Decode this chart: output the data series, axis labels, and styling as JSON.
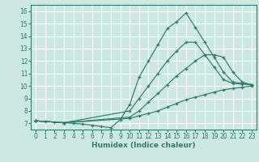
{
  "title": "",
  "xlabel": "Humidex (Indice chaleur)",
  "xlim": [
    -0.5,
    23.5
  ],
  "ylim": [
    6.5,
    16.5
  ],
  "xticks": [
    0,
    1,
    2,
    3,
    4,
    5,
    6,
    7,
    8,
    9,
    10,
    11,
    12,
    13,
    14,
    15,
    16,
    17,
    18,
    19,
    20,
    21,
    22,
    23
  ],
  "yticks": [
    7,
    8,
    9,
    10,
    11,
    12,
    13,
    14,
    15,
    16
  ],
  "background_color": "#cce8e0",
  "line_color": "#2e7d6e",
  "grid_color": "#ffffff",
  "lines": [
    {
      "x": [
        0,
        1,
        2,
        3,
        4,
        5,
        6,
        7,
        8,
        9,
        10,
        11,
        12,
        13,
        14,
        15,
        16,
        17,
        18,
        19,
        20,
        21,
        22,
        23
      ],
      "y": [
        7.2,
        7.15,
        7.1,
        7.05,
        7.0,
        6.95,
        6.85,
        6.75,
        6.65,
        7.3,
        8.5,
        10.7,
        12.0,
        13.3,
        14.6,
        15.15,
        15.85,
        14.7,
        13.5,
        12.3,
        11.1,
        10.3,
        10.2,
        10.1
      ]
    },
    {
      "x": [
        0,
        3,
        10,
        11,
        12,
        13,
        14,
        15,
        16,
        17,
        18,
        19,
        20,
        21,
        22,
        23
      ],
      "y": [
        7.2,
        7.05,
        8.0,
        9.0,
        10.0,
        11.0,
        12.0,
        12.8,
        13.5,
        13.5,
        12.5,
        11.5,
        10.5,
        10.2,
        10.15,
        10.1
      ]
    },
    {
      "x": [
        0,
        3,
        10,
        11,
        12,
        13,
        14,
        15,
        16,
        17,
        18,
        19,
        20,
        21,
        22,
        23
      ],
      "y": [
        7.2,
        7.05,
        7.5,
        8.0,
        8.7,
        9.4,
        10.1,
        10.8,
        11.4,
        12.0,
        12.5,
        12.5,
        12.3,
        11.1,
        10.3,
        10.1
      ]
    },
    {
      "x": [
        0,
        3,
        10,
        11,
        12,
        13,
        14,
        15,
        16,
        17,
        18,
        19,
        20,
        21,
        22,
        23
      ],
      "y": [
        7.2,
        7.05,
        7.4,
        7.6,
        7.8,
        8.0,
        8.3,
        8.6,
        8.9,
        9.1,
        9.3,
        9.5,
        9.7,
        9.8,
        9.9,
        10.0
      ]
    }
  ]
}
